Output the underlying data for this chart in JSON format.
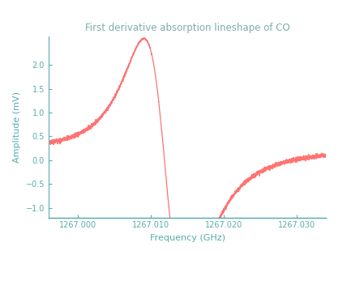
{
  "title": "First derivative absorption lineshape of CO",
  "title_color": "#7FAAAA",
  "xlabel": "Frequency (GHz)",
  "ylabel": "Amplitude (mV)",
  "xlim": [
    1266.996,
    1267.034
  ],
  "ylim": [
    -1.2,
    2.6
  ],
  "xticks": [
    1267.0,
    1267.01,
    1267.02,
    1267.03
  ],
  "yticks": [
    -1.0,
    -0.5,
    0.0,
    0.5,
    1.0,
    1.5,
    2.0
  ],
  "line_color": "#FF6B6B",
  "background_color": "#ffffff",
  "outer_bg": "#c8c8c8",
  "axis_color": "#5AABAB",
  "tick_color": "#5AABAB",
  "label_color": "#5AABAB",
  "title_fontsize": 8.5,
  "label_fontsize": 8,
  "tick_fontsize": 7,
  "f0": 1267.012,
  "gamma_lorentz": 0.004,
  "gamma_gauss": 0.005,
  "amplitude_max": 2.3,
  "baseline": 0.25,
  "noise_std": 0.022,
  "noise_seed": 15
}
